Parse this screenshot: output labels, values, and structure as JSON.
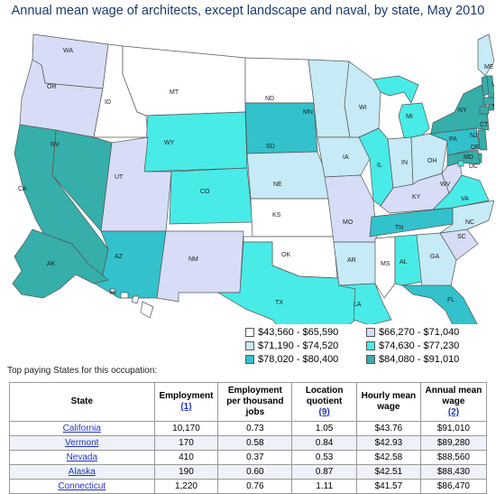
{
  "title": "Annual mean wage of architects, except landscape and naval, by state, May 2010",
  "colors": {
    "c1": "#ffffff",
    "c2": "#d7ddf6",
    "c3": "#c6eaf6",
    "c4": "#49ebe7",
    "c5": "#33c1cc",
    "c6": "#36aeaa",
    "border": "#555555"
  },
  "legend": [
    {
      "label": "$43,560 - $65,590",
      "color_key": "c1"
    },
    {
      "label": "$66,270 - $71,040",
      "color_key": "c2"
    },
    {
      "label": "$71,190 - $74,520",
      "color_key": "c3"
    },
    {
      "label": "$74,630 - $77,230",
      "color_key": "c4"
    },
    {
      "label": "$78,020 - $80,400",
      "color_key": "c5"
    },
    {
      "label": "$84,080 - $91,010",
      "color_key": "c6"
    }
  ],
  "states": {
    "WA": "c2",
    "OR": "c2",
    "CA": "c6",
    "NV": "c6",
    "ID": "c1",
    "MT": "c1",
    "WY": "c4",
    "UT": "c2",
    "AZ": "c5",
    "CO": "c4",
    "NM": "c2",
    "ND": "c1",
    "SD": "c5",
    "NE": "c3",
    "KS": "c1",
    "OK": "c1",
    "TX": "c4",
    "MN": "c3",
    "IA": "c3",
    "MO": "c2",
    "AR": "c3",
    "LA": "c4",
    "WI": "c3",
    "IL": "c4",
    "MI": "c4",
    "IN": "c3",
    "OH": "c3",
    "KY": "c2",
    "TN": "c5",
    "MS": "c1",
    "AL": "c4",
    "GA": "c3",
    "FL": "c5",
    "SC": "c2",
    "NC": "c3",
    "VA": "c4",
    "WV": "c2",
    "PA": "c5",
    "NY": "c6",
    "ME": "c3",
    "VT": "c6",
    "NH": "c6",
    "MA": "c6",
    "RI": "c6",
    "CT": "c6",
    "NJ": "c6",
    "DE": "c6",
    "MD": "c6",
    "DC": "c4",
    "AK": "c6",
    "HI": "c1"
  },
  "map_labels": [
    "WA",
    "OR",
    "CA",
    "NV",
    "ID",
    "MT",
    "WY",
    "UT",
    "AZ",
    "CO",
    "NM",
    "ND",
    "SD",
    "NE",
    "KS",
    "OK",
    "TX",
    "MN",
    "IA",
    "MO",
    "AR",
    "LA",
    "WI",
    "IL",
    "MI",
    "IN",
    "OH",
    "KY",
    "TN",
    "MS",
    "AL",
    "GA",
    "FL",
    "SC",
    "NC",
    "VA",
    "WV",
    "PA",
    "NY",
    "ME",
    "VT",
    "NH",
    "MA",
    "RI",
    "CT",
    "NJ",
    "DE",
    "MD",
    "DC",
    "AK",
    "HI"
  ],
  "caption": "Top paying States for this occupation:",
  "table": {
    "headers": [
      {
        "label": "State",
        "link": ""
      },
      {
        "label": "Employment",
        "link": "(1)"
      },
      {
        "label": "Employment per thousand jobs",
        "link": ""
      },
      {
        "label": "Location quotient",
        "link": "(9)"
      },
      {
        "label": "Hourly mean wage",
        "link": ""
      },
      {
        "label": "Annual mean wage",
        "link": "(2)"
      }
    ],
    "rows": [
      {
        "state": "California",
        "employment": "10,170",
        "per_thousand": "0.73",
        "lq": "1.05",
        "hourly": "$43.76",
        "annual": "$91,010"
      },
      {
        "state": "Vermont",
        "employment": "170",
        "per_thousand": "0.58",
        "lq": "0.84",
        "hourly": "$42.93",
        "annual": "$89,280"
      },
      {
        "state": "Nevada",
        "employment": "410",
        "per_thousand": "0.37",
        "lq": "0.53",
        "hourly": "$42.58",
        "annual": "$88,560"
      },
      {
        "state": "Alaska",
        "employment": "190",
        "per_thousand": "0.60",
        "lq": "0.87",
        "hourly": "$42.51",
        "annual": "$88,430"
      },
      {
        "state": "Connecticut",
        "employment": "1,220",
        "per_thousand": "0.76",
        "lq": "1.11",
        "hourly": "$41.57",
        "annual": "$86,470"
      }
    ]
  }
}
